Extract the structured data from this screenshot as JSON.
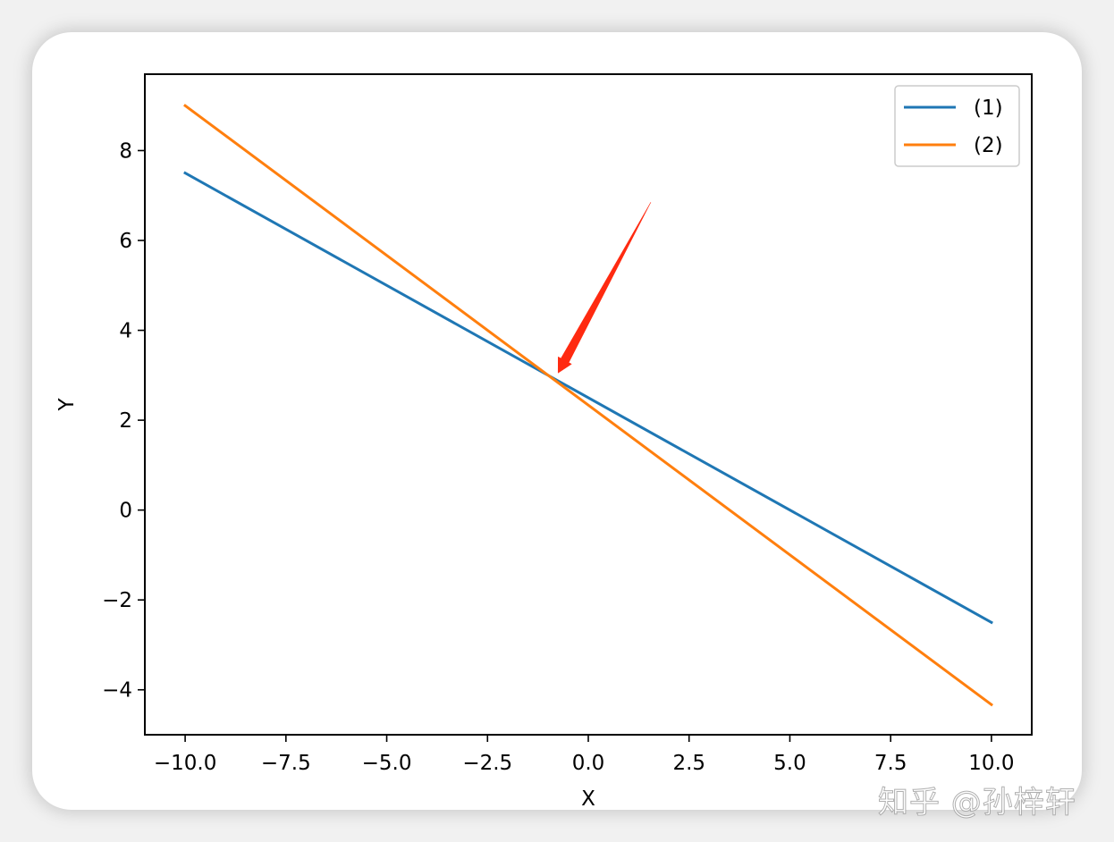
{
  "chart_data": {
    "type": "line",
    "title": "",
    "xlabel": "X",
    "ylabel": "Y",
    "xlim": [
      -11,
      11
    ],
    "ylim": [
      -5,
      9.7
    ],
    "xticks": [
      -10.0,
      -7.5,
      -5.0,
      -2.5,
      0.0,
      2.5,
      5.0,
      7.5,
      10.0
    ],
    "xtick_labels": [
      "−10.0",
      "−7.5",
      "−5.0",
      "−2.5",
      "0.0",
      "2.5",
      "5.0",
      "7.5",
      "10.0"
    ],
    "yticks": [
      -4,
      -2,
      0,
      2,
      4,
      6,
      8
    ],
    "ytick_labels": [
      "−4",
      "−2",
      "0",
      "2",
      "4",
      "6",
      "8"
    ],
    "grid": false,
    "legend_position": "top-right",
    "series": [
      {
        "name": "(1)",
        "color": "#1f77b4",
        "x": [
          -10,
          10
        ],
        "y": [
          7.5,
          -2.5
        ]
      },
      {
        "name": "(2)",
        "color": "#ff7f0e",
        "x": [
          -10,
          10
        ],
        "y": [
          9.0,
          -4.33
        ]
      }
    ],
    "annotations": [
      {
        "type": "arrow",
        "color": "#ff2a10",
        "from": [
          1.55,
          6.85
        ],
        "to": [
          -0.75,
          3.05
        ]
      }
    ]
  },
  "watermark": "知乎 @孙梓轩"
}
